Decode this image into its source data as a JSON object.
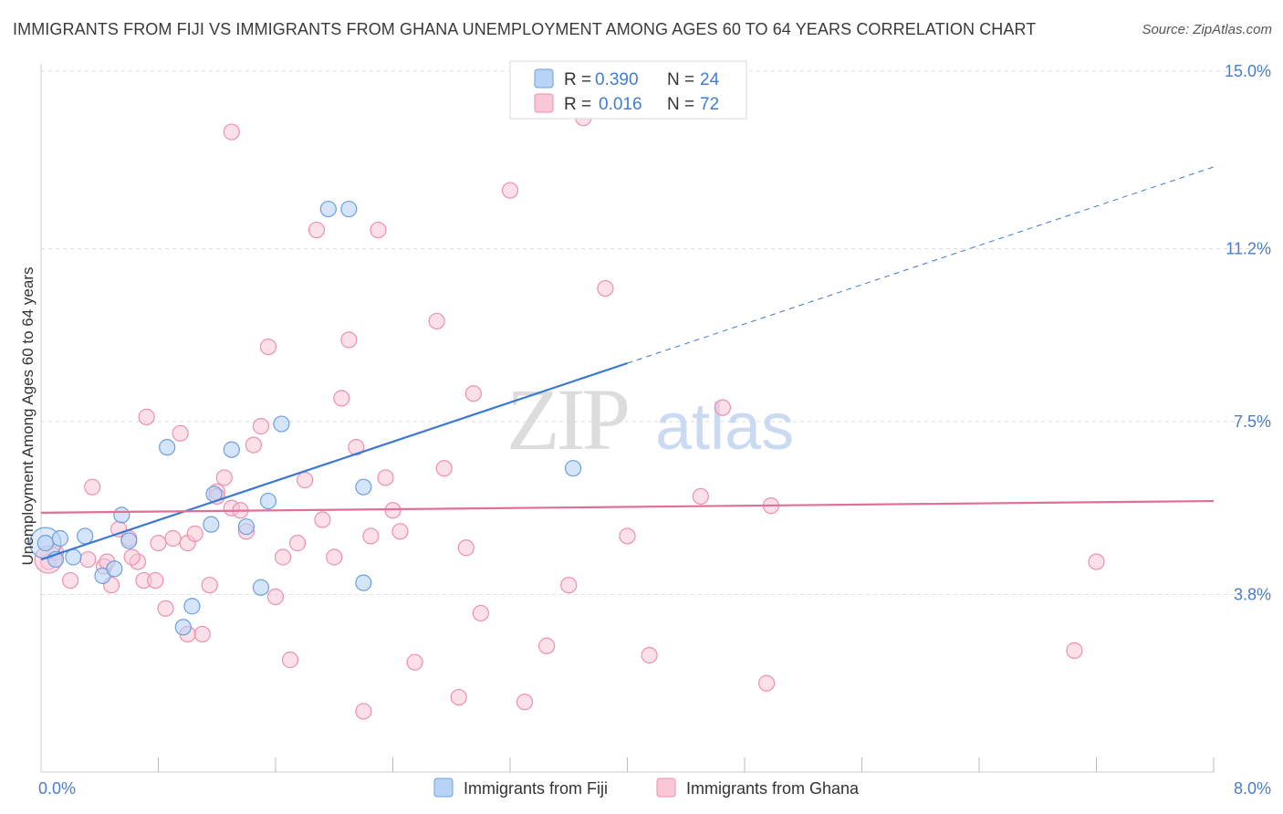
{
  "title": "IMMIGRANTS FROM FIJI VS IMMIGRANTS FROM GHANA UNEMPLOYMENT AMONG AGES 60 TO 64 YEARS CORRELATION CHART",
  "source": "Source: ZipAtlas.com",
  "watermark": {
    "zip": "ZIP",
    "atlas": "atlas"
  },
  "colors": {
    "fiji_fill": "#b8d3f5",
    "fiji_stroke": "#6d9fe0",
    "fiji_line": "#3b78d0",
    "ghana_fill": "#f9c7d6",
    "ghana_stroke": "#ee8fae",
    "ghana_line": "#e06f98",
    "grid": "#dddddd",
    "axis_label": "#4a7cc7"
  },
  "legend": {
    "fiji": {
      "r_label": "R =",
      "r_value": "0.390",
      "n_label": "N =",
      "n_value": "24"
    },
    "ghana": {
      "r_label": "R =",
      "r_value": "0.016",
      "n_label": "N =",
      "n_value": "72"
    }
  },
  "chart_data": {
    "type": "scatter",
    "title": "IMMIGRANTS FROM FIJI VS IMMIGRANTS FROM GHANA UNEMPLOYMENT AMONG AGES 60 TO 64 YEARS CORRELATION CHART",
    "xlabel": "",
    "ylabel": "Unemployment Among Ages 60 to 64 years",
    "xlim": [
      0,
      8.0
    ],
    "ylim": [
      0,
      15.0
    ],
    "x_tick_labels": [
      "0.0%",
      "8.0%"
    ],
    "y_ticks": [
      3.8,
      7.5,
      11.2,
      15.0
    ],
    "y_tick_labels": [
      "3.8%",
      "7.5%",
      "11.2%",
      "15.0%"
    ],
    "series": [
      {
        "name": "Immigrants from Fiji",
        "points": [
          [
            0.03,
            4.9
          ],
          [
            0.13,
            5.0
          ],
          [
            0.3,
            5.05
          ],
          [
            0.22,
            4.6
          ],
          [
            0.55,
            5.5
          ],
          [
            0.6,
            4.95
          ],
          [
            0.42,
            4.2
          ],
          [
            0.5,
            4.35
          ],
          [
            0.86,
            6.95
          ],
          [
            1.16,
            5.3
          ],
          [
            1.18,
            5.95
          ],
          [
            1.3,
            6.9
          ],
          [
            1.4,
            5.25
          ],
          [
            1.55,
            5.8
          ],
          [
            1.64,
            7.45
          ],
          [
            1.5,
            3.95
          ],
          [
            1.03,
            3.55
          ],
          [
            0.97,
            3.1
          ],
          [
            1.96,
            12.05
          ],
          [
            2.1,
            12.05
          ],
          [
            2.2,
            6.1
          ],
          [
            2.2,
            4.05
          ],
          [
            3.63,
            6.5
          ],
          [
            0.1,
            4.55
          ]
        ],
        "trend": {
          "x": [
            0.0,
            4.0
          ],
          "y": [
            4.55,
            8.75
          ],
          "dashed_extension": {
            "x": [
              4.0,
              8.0
            ],
            "y": [
              8.75,
              12.95
            ]
          }
        }
      },
      {
        "name": "Immigrants from Ghana",
        "points": [
          [
            0.05,
            4.5
          ],
          [
            0.1,
            4.7
          ],
          [
            0.2,
            4.1
          ],
          [
            0.35,
            6.1
          ],
          [
            0.43,
            4.4
          ],
          [
            0.45,
            4.5
          ],
          [
            0.48,
            4.0
          ],
          [
            0.53,
            5.2
          ],
          [
            0.6,
            5.0
          ],
          [
            0.66,
            4.5
          ],
          [
            0.7,
            4.1
          ],
          [
            0.72,
            7.6
          ],
          [
            0.8,
            4.9
          ],
          [
            0.85,
            3.5
          ],
          [
            0.9,
            5.0
          ],
          [
            0.95,
            7.25
          ],
          [
            1.0,
            4.9
          ],
          [
            1.05,
            5.1
          ],
          [
            1.1,
            2.95
          ],
          [
            1.15,
            4.0
          ],
          [
            1.2,
            6.0
          ],
          [
            1.25,
            6.3
          ],
          [
            1.3,
            5.65
          ],
          [
            1.4,
            5.15
          ],
          [
            1.45,
            7.0
          ],
          [
            1.5,
            7.4
          ],
          [
            1.55,
            9.1
          ],
          [
            1.6,
            3.75
          ],
          [
            1.65,
            4.6
          ],
          [
            1.7,
            2.4
          ],
          [
            1.75,
            4.9
          ],
          [
            1.8,
            6.25
          ],
          [
            1.88,
            11.6
          ],
          [
            1.92,
            5.4
          ],
          [
            2.0,
            4.6
          ],
          [
            2.05,
            8.0
          ],
          [
            2.1,
            9.25
          ],
          [
            2.15,
            6.95
          ],
          [
            2.2,
            1.3
          ],
          [
            2.25,
            5.05
          ],
          [
            2.3,
            11.6
          ],
          [
            2.35,
            6.3
          ],
          [
            2.4,
            5.6
          ],
          [
            2.45,
            5.15
          ],
          [
            2.55,
            2.35
          ],
          [
            2.7,
            9.65
          ],
          [
            2.75,
            6.5
          ],
          [
            2.85,
            1.6
          ],
          [
            2.9,
            4.8
          ],
          [
            2.95,
            8.1
          ],
          [
            3.0,
            3.4
          ],
          [
            3.2,
            12.45
          ],
          [
            3.3,
            1.5
          ],
          [
            3.45,
            2.7
          ],
          [
            3.6,
            4.0
          ],
          [
            3.7,
            14.0
          ],
          [
            3.85,
            10.35
          ],
          [
            4.0,
            5.05
          ],
          [
            4.15,
            2.5
          ],
          [
            4.5,
            5.9
          ],
          [
            4.65,
            7.8
          ],
          [
            4.95,
            1.9
          ],
          [
            4.98,
            5.7
          ],
          [
            1.3,
            13.7
          ],
          [
            7.05,
            2.6
          ],
          [
            7.2,
            4.5
          ],
          [
            1.0,
            2.95
          ],
          [
            0.32,
            4.55
          ],
          [
            0.78,
            4.1
          ],
          [
            1.36,
            5.6
          ],
          [
            0.62,
            4.6
          ],
          [
            1.2,
            5.9
          ]
        ],
        "trend": {
          "x": [
            0.0,
            8.0
          ],
          "y": [
            5.55,
            5.8
          ]
        }
      }
    ]
  },
  "bottom_legend": {
    "fiji": "Immigrants from Fiji",
    "ghana": "Immigrants from Ghana"
  }
}
